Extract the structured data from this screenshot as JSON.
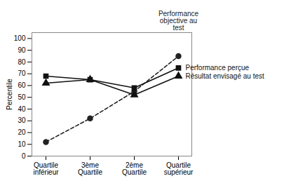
{
  "chart_data": {
    "type": "line",
    "categories": [
      "Quartile\ninférieur",
      "3ème\nQuartile",
      "2ème\nQuartile",
      "Quartile\nsupérieur"
    ],
    "series": [
      {
        "name": "Performance\nobjective au\ntest",
        "color": "#222222",
        "values": [
          12,
          32,
          55,
          85
        ],
        "marker": "circle",
        "line_style": "dashed"
      },
      {
        "name": "Performance perçue",
        "color": "#111111",
        "values": [
          68,
          65,
          58,
          75
        ],
        "marker": "square",
        "line_style": "solid"
      },
      {
        "name": "Résultat envisagé au test",
        "color": "#111111",
        "values": [
          62,
          65,
          52,
          68
        ],
        "marker": "triangle",
        "line_style": "solid"
      }
    ],
    "ylabel": "Percentile",
    "ylim": [
      0,
      105
    ],
    "yticks": [
      0,
      10,
      20,
      30,
      40,
      50,
      60,
      70,
      80,
      90,
      100
    ],
    "grid": false
  }
}
